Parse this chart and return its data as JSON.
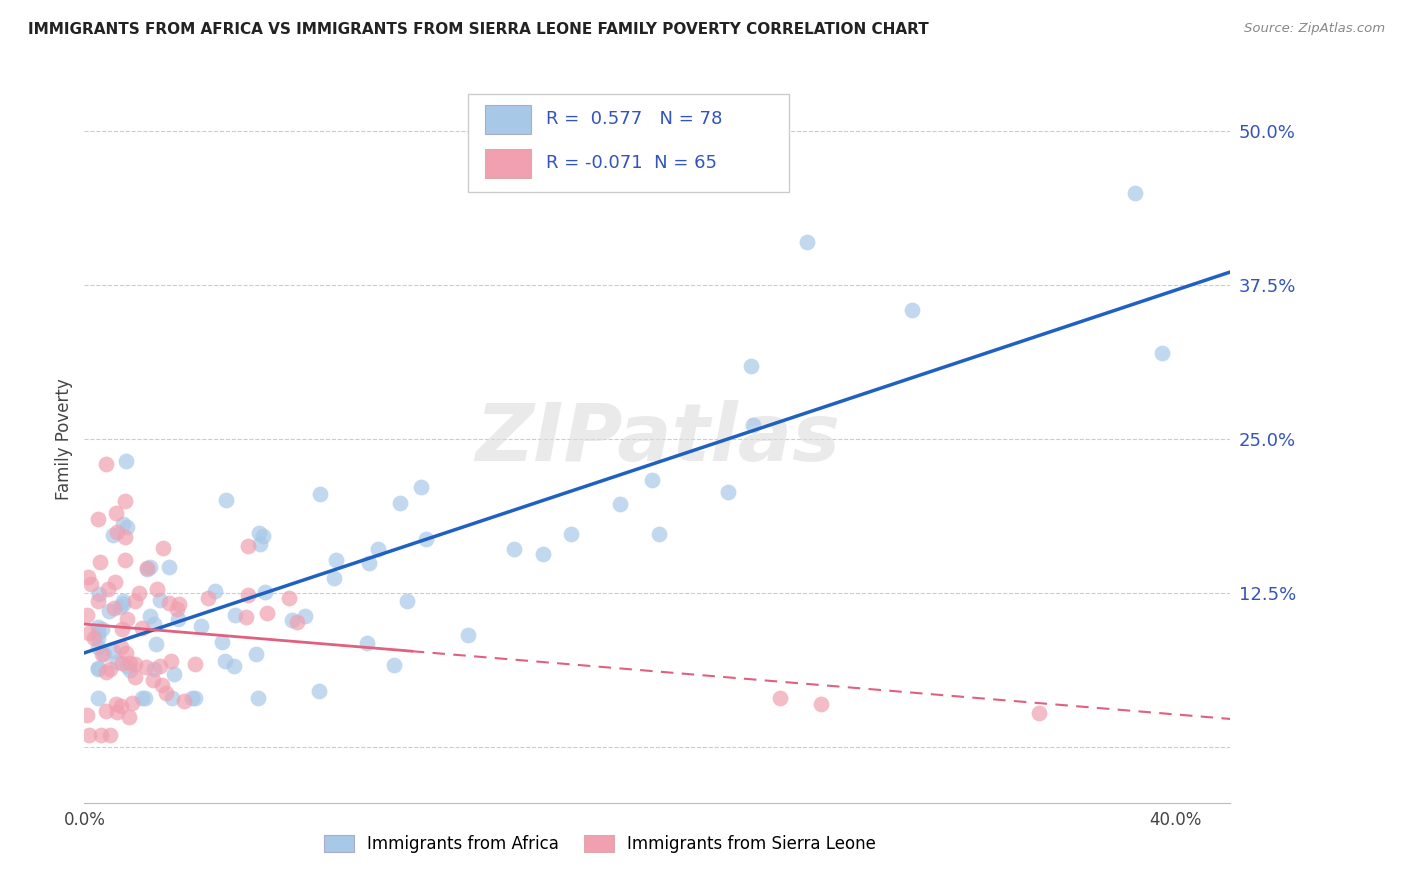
{
  "title": "IMMIGRANTS FROM AFRICA VS IMMIGRANTS FROM SIERRA LEONE FAMILY POVERTY CORRELATION CHART",
  "source": "Source: ZipAtlas.com",
  "ylabel": "Family Poverty",
  "yticks": [
    0.0,
    0.125,
    0.25,
    0.375,
    0.5
  ],
  "ytick_labels": [
    "",
    "12.5%",
    "25.0%",
    "37.5%",
    "50.0%"
  ],
  "xlim": [
    0.0,
    0.42
  ],
  "ylim": [
    -0.045,
    0.545
  ],
  "legend_africa_R": "0.577",
  "legend_africa_N": "78",
  "legend_sierra_R": "-0.071",
  "legend_sierra_N": "65",
  "africa_color": "#a8c8e8",
  "sierra_color": "#f0a0b0",
  "africa_line_color": "#2060c0",
  "sierra_line_color": "#e06080",
  "watermark": "ZIPatlas",
  "africa_seed": 42,
  "sierra_seed": 7
}
